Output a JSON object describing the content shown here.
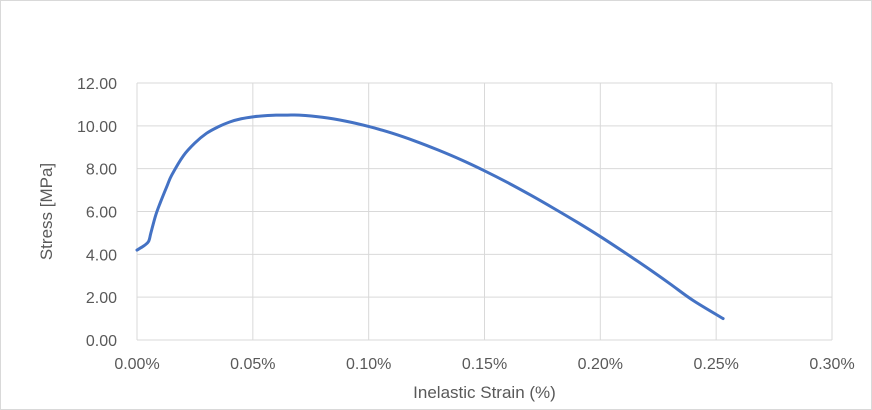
{
  "chart_data": {
    "type": "line",
    "title": "",
    "xlabel": "Inelastic Strain (%)",
    "ylabel": "Stress [MPa]",
    "xlim": [
      0,
      0.3
    ],
    "ylim": [
      0,
      12
    ],
    "x_tick_labels": [
      "0.00%",
      "0.05%",
      "0.10%",
      "0.15%",
      "0.20%",
      "0.25%",
      "0.30%"
    ],
    "y_tick_labels": [
      "0.00",
      "2.00",
      "4.00",
      "6.00",
      "8.00",
      "10.00",
      "12.00"
    ],
    "x_ticks": [
      0,
      0.05,
      0.1,
      0.15,
      0.2,
      0.25,
      0.3
    ],
    "y_ticks": [
      0,
      2,
      4,
      6,
      8,
      10,
      12
    ],
    "grid": "vertical and horizontal",
    "legend": "none",
    "series": [
      {
        "color": "#4472C4",
        "x": [
          0.0,
          0.003,
          0.005,
          0.006,
          0.008,
          0.01,
          0.013,
          0.015,
          0.02,
          0.025,
          0.03,
          0.035,
          0.04,
          0.045,
          0.05,
          0.055,
          0.06,
          0.065,
          0.07,
          0.08,
          0.09,
          0.1,
          0.11,
          0.12,
          0.13,
          0.14,
          0.15,
          0.16,
          0.17,
          0.18,
          0.19,
          0.2,
          0.21,
          0.22,
          0.23,
          0.24,
          0.253
        ],
        "y": [
          4.2,
          4.4,
          4.6,
          5.0,
          5.8,
          6.4,
          7.2,
          7.7,
          8.6,
          9.2,
          9.65,
          9.95,
          10.18,
          10.33,
          10.42,
          10.47,
          10.5,
          10.5,
          10.5,
          10.4,
          10.22,
          9.97,
          9.66,
          9.29,
          8.87,
          8.41,
          7.9,
          7.35,
          6.76,
          6.14,
          5.5,
          4.83,
          4.12,
          3.39,
          2.63,
          1.85,
          1.0
        ]
      }
    ]
  }
}
